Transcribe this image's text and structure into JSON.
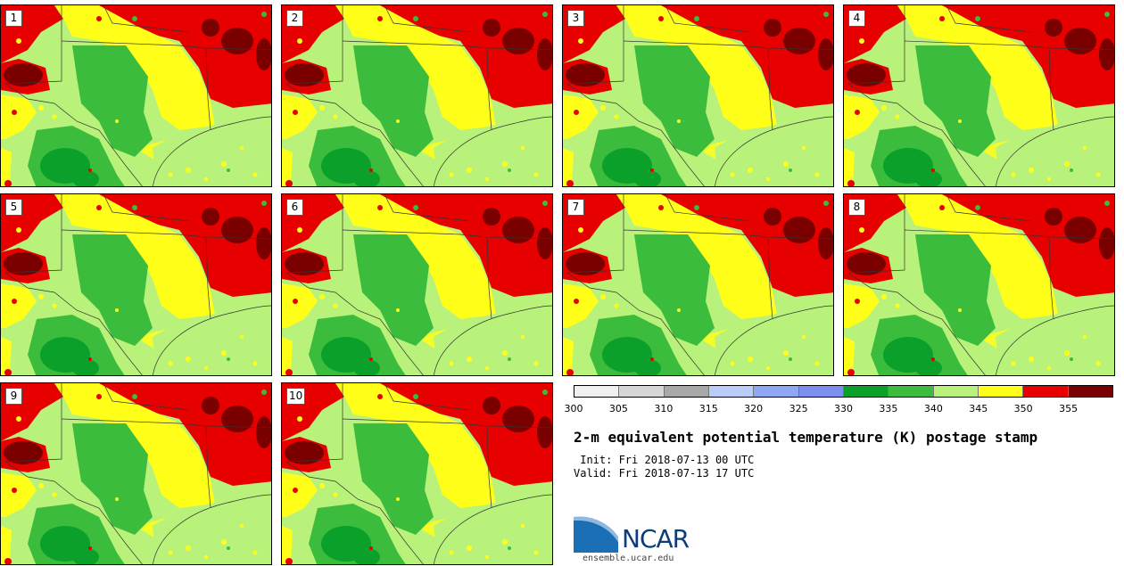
{
  "panels": [
    {
      "label": "1"
    },
    {
      "label": "2"
    },
    {
      "label": "3"
    },
    {
      "label": "4"
    },
    {
      "label": "5"
    },
    {
      "label": "6"
    },
    {
      "label": "7"
    },
    {
      "label": "8"
    },
    {
      "label": "9"
    },
    {
      "label": "10"
    }
  ],
  "colorbar": {
    "colors": [
      "#f0f0f0",
      "#d6d6d6",
      "#a8a8a8",
      "#b9cdf8",
      "#8ea8f4",
      "#7d8ef0",
      "#0aa02a",
      "#3cbc3c",
      "#b8f27a",
      "#ffff1a",
      "#e60000",
      "#7a0000"
    ],
    "ticks": [
      "300",
      "305",
      "310",
      "315",
      "320",
      "325",
      "330",
      "335",
      "340",
      "345",
      "350",
      "355"
    ]
  },
  "title": "2-m equivalent potential temperature (K) postage stamp",
  "init": " Init: Fri 2018-07-13 00 UTC",
  "valid": "Valid: Fri 2018-07-13 17 UTC",
  "logo": {
    "name": "NCAR",
    "url": "ensemble.ucar.edu"
  },
  "map_colors": {
    "dark_red": "#7a0000",
    "red": "#e60000",
    "yellow": "#ffff1a",
    "light_green": "#b8f27a",
    "green": "#3cbc3c",
    "dark_green": "#0aa02a"
  }
}
